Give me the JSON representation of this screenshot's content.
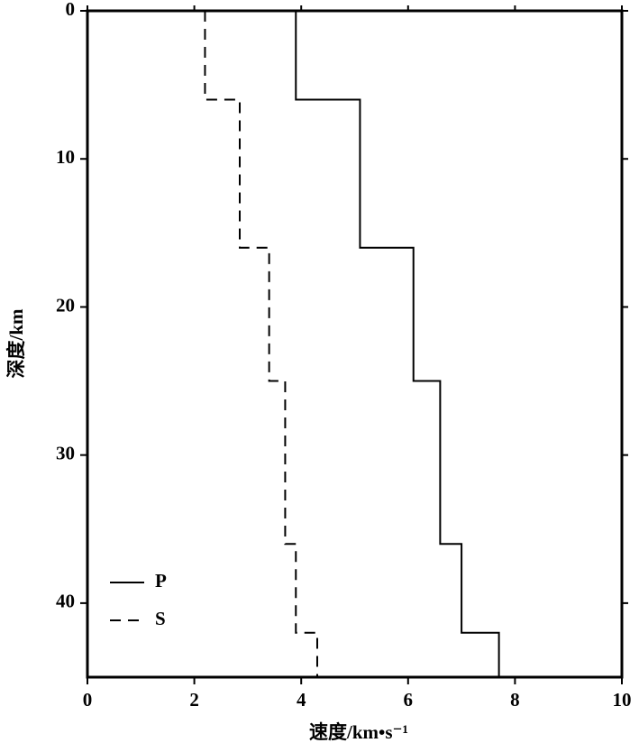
{
  "chart_data": {
    "type": "line",
    "x_label": "速度/km•s⁻¹",
    "y_label": "深度/km",
    "xlim": [
      0,
      10
    ],
    "ylim": [
      0,
      45
    ],
    "y_inverted": true,
    "xticks": [
      0,
      2,
      4,
      6,
      8,
      10
    ],
    "yticks": [
      0,
      10,
      20,
      30,
      40
    ],
    "legend": "lower left",
    "series": [
      {
        "name": "P",
        "color": "#000000",
        "dash": "solid",
        "x": [
          3.9,
          3.9,
          5.1,
          5.1,
          6.1,
          6.1,
          6.6,
          6.6,
          7.0,
          7.0,
          7.7,
          7.7
        ],
        "y": [
          0,
          6,
          6,
          16,
          16,
          25,
          25,
          36,
          36,
          42,
          42,
          45
        ]
      },
      {
        "name": "S",
        "color": "#000000",
        "dash": "dashed",
        "x": [
          2.2,
          2.2,
          2.85,
          2.85,
          3.4,
          3.4,
          3.7,
          3.7,
          3.9,
          3.9,
          4.3,
          4.3
        ],
        "y": [
          0,
          6,
          6,
          16,
          16,
          25,
          25,
          36,
          36,
          42,
          42,
          45
        ]
      }
    ]
  }
}
